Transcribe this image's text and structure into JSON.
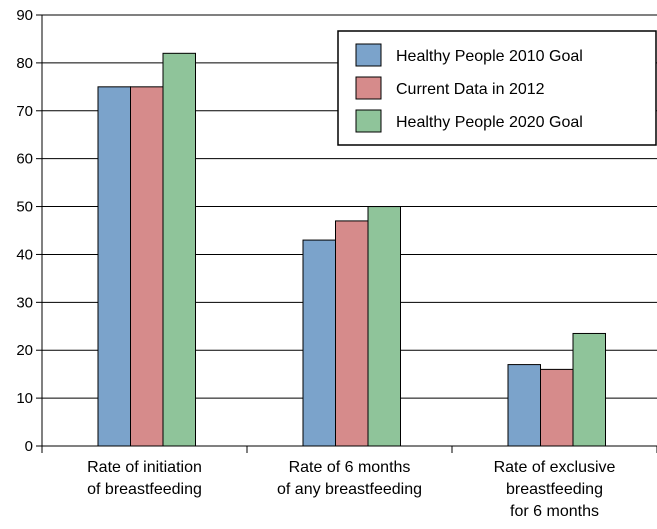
{
  "chart_data": {
    "type": "bar",
    "categories": [
      [
        "Rate of initiation",
        "of breastfeeding"
      ],
      [
        "Rate of 6 months",
        "of any breastfeeding"
      ],
      [
        "Rate of exclusive",
        "breastfeeding",
        "for 6 months"
      ]
    ],
    "series": [
      {
        "name": "Healthy People 2010 Goal",
        "color": "#7ba3cb",
        "values": [
          75,
          43,
          17
        ]
      },
      {
        "name": "Current Data in 2012",
        "color": "#d68b8b",
        "values": [
          75,
          47,
          16
        ]
      },
      {
        "name": "Healthy People 2020 Goal",
        "color": "#8fc49a",
        "values": [
          82,
          50,
          23.5
        ]
      }
    ],
    "ylim": [
      0,
      90
    ],
    "yticks": [
      0,
      10,
      20,
      30,
      40,
      50,
      60,
      70,
      80,
      90
    ],
    "grid": true,
    "legend_position": "top-right"
  }
}
